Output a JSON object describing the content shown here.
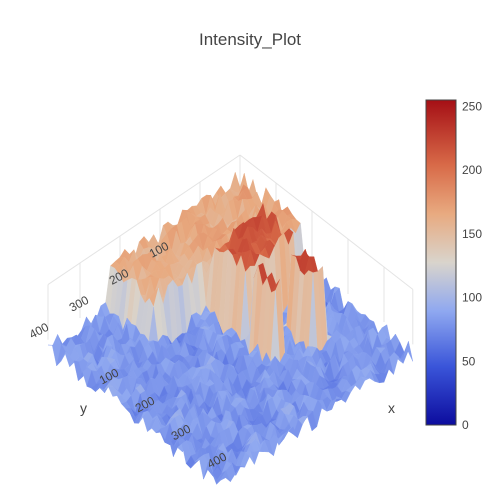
{
  "chart_data": {
    "type": "surface",
    "title": "Intensity_Plot",
    "scene": {
      "x_axis": {
        "title": "x",
        "ticks": [
          "100",
          "200",
          "300",
          "400"
        ]
      },
      "y_axis": {
        "title": "y",
        "ticks": [
          "100",
          "200",
          "300",
          "400"
        ]
      },
      "z_axis": {
        "title": "",
        "ticks": []
      }
    },
    "colorbar": {
      "range": [
        0,
        255
      ],
      "ticks": [
        "0",
        "50",
        "100",
        "150",
        "200",
        "250"
      ],
      "tick_values": [
        0,
        50,
        100,
        150,
        200,
        250
      ],
      "colorscale": [
        [
          0.0,
          "#0c0c9e"
        ],
        [
          0.18,
          "#3a55d9"
        ],
        [
          0.35,
          "#8fa8f0"
        ],
        [
          0.5,
          "#d9d4cc"
        ],
        [
          0.65,
          "#e8aa80"
        ],
        [
          0.8,
          "#d86a48"
        ],
        [
          1.0,
          "#a50f15"
        ]
      ]
    },
    "z_range": [
      0,
      255
    ]
  }
}
